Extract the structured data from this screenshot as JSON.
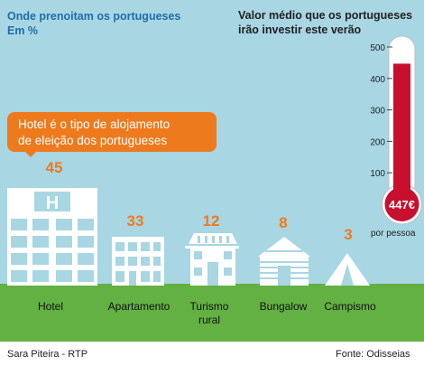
{
  "header": {
    "title_line1": "Onde prenoitam os portugueses",
    "title_line2": "Em %",
    "right_title_line1": "Valor médio que os portugueses",
    "right_title_line2": "irão investir este verão"
  },
  "callout": {
    "line1": "Hotel é o tipo de alojamento",
    "line2": "de eleição dos portugueses"
  },
  "chart_data": [
    {
      "type": "bar",
      "title": "Onde prenoitam os portugueses",
      "subtitle": "Em %",
      "categories": [
        "Hotel",
        "Apartamento",
        "Turismo rural",
        "Bungalow",
        "Campismo"
      ],
      "category_lines": [
        [
          "Hotel"
        ],
        [
          "Apartamento"
        ],
        [
          "Turismo",
          "rural"
        ],
        [
          "Bungalow"
        ],
        [
          "Campismo"
        ]
      ],
      "values": [
        45,
        33,
        12,
        8,
        3
      ],
      "value_labels": [
        "45",
        "33",
        "12",
        "8",
        "3"
      ],
      "icons": [
        "hotel-building-icon",
        "apartment-building-icon",
        "rural-house-icon",
        "log-cabin-icon",
        "tent-icon"
      ]
    },
    {
      "type": "thermometer",
      "title": "Valor médio que os portugueses irão investir este verão",
      "value": 447,
      "value_label": "447€",
      "unit_label": "por pessoa",
      "ticks": [
        100,
        200,
        300,
        400,
        500
      ],
      "tick_labels": [
        "100",
        "200",
        "300",
        "400",
        "500"
      ],
      "ylim": [
        0,
        500
      ]
    }
  ],
  "footer": {
    "left": "Sara Piteira - RTP",
    "right": "Fonte: Odisseias"
  },
  "colors": {
    "sky": "#a8d6e3",
    "grass": "#63b043",
    "accent": "#ee7a1e",
    "building": "#ffffff",
    "thermometer": "#c8102e"
  }
}
